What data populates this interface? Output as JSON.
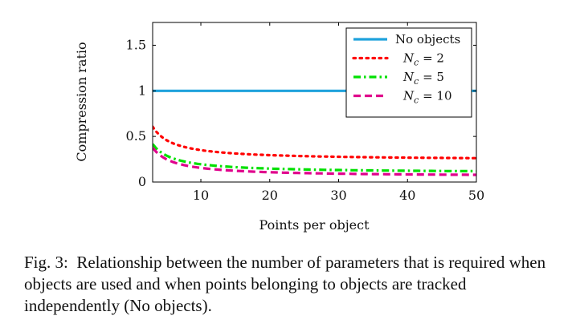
{
  "chart_data": {
    "type": "line",
    "xlabel": "Points per object",
    "ylabel": "Compression ratio",
    "xlim": [
      3,
      50
    ],
    "ylim": [
      0,
      1.75
    ],
    "xticks": [
      10,
      20,
      30,
      40,
      50
    ],
    "yticks": [
      0,
      0.5,
      1,
      1.5
    ],
    "ytick_labels": [
      "0",
      "0.5",
      "1",
      "1.5"
    ],
    "legend_position": "top-right",
    "series": [
      {
        "name": "No objects",
        "legend_label": "No objects",
        "color": "#1fa2dc",
        "style": "solid",
        "x": [
          3,
          50
        ],
        "y": [
          1.0,
          1.0
        ]
      },
      {
        "name": "N_c = 2",
        "legend_var": "N",
        "legend_sub": "c",
        "legend_rest": " = 2",
        "color": "#ff0000",
        "style": "dotted",
        "formula_nc": 2
      },
      {
        "name": "N_c = 5",
        "legend_var": "N",
        "legend_sub": "c",
        "legend_rest": " = 5",
        "color": "#00e000",
        "style": "dashdot",
        "formula_nc": 5
      },
      {
        "name": "N_c = 10",
        "legend_var": "N",
        "legend_sub": "c",
        "legend_rest": " = 10",
        "color": "#e0008c",
        "style": "dashed",
        "formula_nc": 10
      }
    ]
  },
  "caption": {
    "label": "Fig. 3:",
    "text": "Relationship between the number of parameters that is required when objects are used and when points belonging to objects are tracked independently (No objects)."
  }
}
